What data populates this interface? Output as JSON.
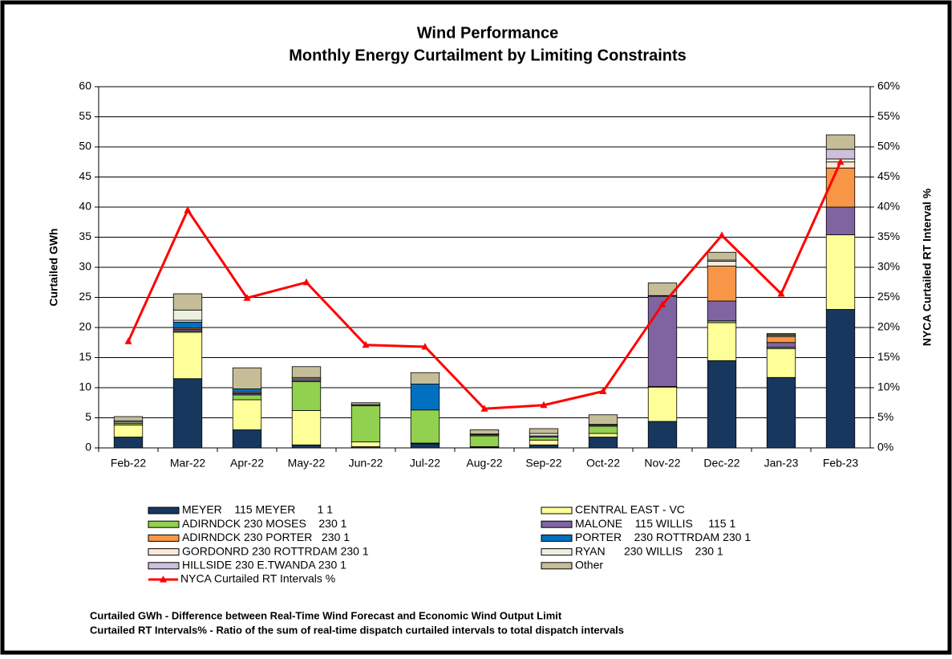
{
  "chart_data": {
    "type": "bar",
    "stacked": true,
    "title": [
      "Wind Performance",
      "Monthly Energy Curtailment by Limiting Constraints"
    ],
    "ylabel": "Curtailed GWh",
    "y2label": "NYCA Curtailed RT Interval %",
    "notes": [
      "Curtailed GWh - Difference between Real-Time Wind Forecast and Economic Wind Output Limit",
      "Curtailed RT Intervals% - Ratio of the sum of real-time dispatch curtailed intervals to total dispatch intervals"
    ],
    "categories": [
      "Feb-22",
      "Mar-22",
      "Apr-22",
      "May-22",
      "Jun-22",
      "Jul-22",
      "Aug-22",
      "Sep-22",
      "Oct-22",
      "Nov-22",
      "Dec-22",
      "Jan-23",
      "Feb-23"
    ],
    "ylim": [
      0,
      60
    ],
    "yticks": [
      0,
      5,
      10,
      15,
      20,
      25,
      30,
      35,
      40,
      45,
      50,
      55,
      60
    ],
    "y2lim": [
      0,
      60
    ],
    "y2ticks": [
      {
        "value": 0,
        "label": "0%"
      },
      {
        "value": 5,
        "label": "5%"
      },
      {
        "value": 10,
        "label": "10%"
      },
      {
        "value": 15,
        "label": "15%"
      },
      {
        "value": 20,
        "label": "20%"
      },
      {
        "value": 25,
        "label": "25%"
      },
      {
        "value": 30,
        "label": "30%"
      },
      {
        "value": 35,
        "label": "35%"
      },
      {
        "value": 40,
        "label": "40%"
      },
      {
        "value": 45,
        "label": "45%"
      },
      {
        "value": 50,
        "label": "50%"
      },
      {
        "value": 55,
        "label": "55%"
      },
      {
        "value": 60,
        "label": "60%"
      }
    ],
    "grid": true,
    "series": [
      {
        "name": "MEYER    115 MEYER       1 1",
        "color": "#17375e",
        "values": [
          1.8,
          11.5,
          3.0,
          0.5,
          0.2,
          0.7,
          0.1,
          0.5,
          1.8,
          4.4,
          14.5,
          11.7,
          23.0
        ]
      },
      {
        "name": "CENTRAL EAST - VC",
        "color": "#ffff99",
        "values": [
          2.0,
          7.7,
          5.0,
          5.7,
          0.8,
          0.1,
          0.1,
          0.8,
          0.6,
          5.7,
          6.3,
          4.8,
          12.4
        ]
      },
      {
        "name": "ADIRNDCK 230 MOSES    230 1",
        "color": "#92d050",
        "values": [
          0.3,
          0.2,
          0.8,
          4.8,
          6.0,
          5.5,
          1.8,
          0.5,
          1.2,
          0.1,
          0.3,
          0.2,
          0
        ]
      },
      {
        "name": "MALONE    115 WILLIS     115 1",
        "color": "#8064a2",
        "values": [
          0,
          0.3,
          0.2,
          0.3,
          0.2,
          0,
          0.2,
          0.2,
          0.2,
          15.0,
          3.3,
          0.8,
          4.6
        ]
      },
      {
        "name": "ADIRNDCK 230 PORTER   230 1",
        "color": "#f79646",
        "values": [
          0,
          0.2,
          0.2,
          0,
          0,
          0,
          0,
          0,
          0,
          0,
          5.8,
          1.0,
          6.5
        ]
      },
      {
        "name": "PORTER    230 ROTTRDAM 230 1",
        "color": "#0070c0",
        "values": [
          0,
          1.0,
          0.6,
          0,
          0,
          4.3,
          0,
          0,
          0,
          0,
          0,
          0,
          0
        ]
      },
      {
        "name": "GORDONRD 230 ROTTRDAM 230 1",
        "color": "#fde9d9",
        "values": [
          0.2,
          0.3,
          0,
          0.2,
          0,
          0,
          0,
          0,
          0,
          0.1,
          0.8,
          0.2,
          1.0
        ]
      },
      {
        "name": "RYAN      230 WILLIS    230 1",
        "color": "#ebf1de",
        "values": [
          0.2,
          1.7,
          0,
          0.2,
          0,
          0,
          0.1,
          0.4,
          0.1,
          0,
          0.2,
          0.1,
          0.5
        ]
      },
      {
        "name": "HILLSIDE 230 E.TWANDA 230 1",
        "color": "#ccc0da",
        "values": [
          0,
          0,
          0,
          0,
          0,
          0,
          0,
          0,
          0,
          0,
          0,
          0,
          1.6
        ]
      },
      {
        "name": "Other",
        "color": "#c4bd97",
        "values": [
          0.7,
          2.7,
          3.5,
          1.8,
          0.3,
          1.9,
          0.7,
          0.8,
          1.6,
          2.1,
          1.3,
          0.2,
          2.4
        ]
      },
      {
        "name": "NYCA Curtailed RT Intervals %",
        "color": "#ff0000",
        "type": "line",
        "axis": "y2",
        "values": [
          17.7,
          39.5,
          24.9,
          27.5,
          17.1,
          16.8,
          6.5,
          7.1,
          9.4,
          23.8,
          35.3,
          25.6,
          47.5
        ]
      }
    ]
  }
}
